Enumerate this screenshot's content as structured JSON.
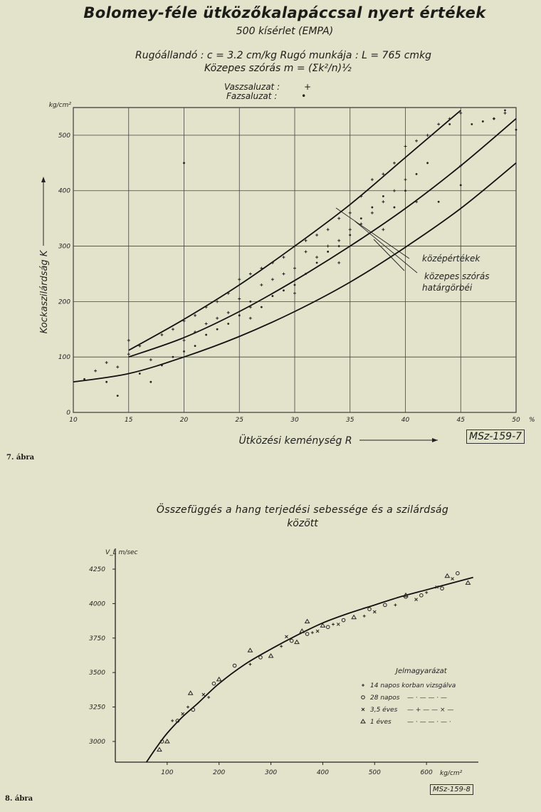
{
  "figure1": {
    "title": "Bolomey-féle ütközőkalapáccsal nyert értékek",
    "subtitle": "500 kísérlet (EMPA)",
    "params_line": "Rugóállandó : c = 3.2 cm/kg   Rugó munkája : L = 765 cmkg",
    "formula_line": "Közepes szórás   m = (Σk²/n)½",
    "legend": [
      {
        "label": "Vaszsaluzat :",
        "symbol": "+"
      },
      {
        "label": "Fazsaluzat :",
        "symbol": "•"
      }
    ],
    "caption": "7. ábra",
    "code_label": "MSz-159-7",
    "annotations": [
      "középértékek",
      "közepes szórás",
      "határgörbéi"
    ],
    "chart_data": {
      "type": "scatter",
      "xlabel": "Ütközési keménység  R",
      "ylabel": "Kockaszilárdság  K",
      "x_unit": "%",
      "y_unit": "kg/cm²",
      "xlim": [
        10,
        50
      ],
      "ylim": [
        0,
        550
      ],
      "x_ticks": [
        "10",
        "15",
        "20",
        "25",
        "30",
        "35",
        "40",
        "45",
        "50"
      ],
      "y_ticks": [
        "0",
        "100",
        "200",
        "300",
        "400",
        "500"
      ],
      "grid": true,
      "curves": [
        {
          "name": "középértékek",
          "points": [
            [
              15,
              100
            ],
            [
              20,
              135
            ],
            [
              25,
              182
            ],
            [
              30,
              238
            ],
            [
              35,
              300
            ],
            [
              40,
              368
            ],
            [
              45,
              445
            ],
            [
              50,
              530
            ]
          ]
        },
        {
          "name": "felső határgörbe",
          "points": [
            [
              15,
              112
            ],
            [
              20,
              168
            ],
            [
              25,
              230
            ],
            [
              30,
              300
            ],
            [
              35,
              375
            ],
            [
              40,
              460
            ],
            [
              45,
              545
            ]
          ]
        },
        {
          "name": "alsó határgörbe",
          "points": [
            [
              10,
              55
            ],
            [
              15,
              70
            ],
            [
              20,
              100
            ],
            [
              25,
              137
            ],
            [
              30,
              182
            ],
            [
              35,
              235
            ],
            [
              40,
              298
            ],
            [
              45,
              368
            ],
            [
              50,
              450
            ]
          ]
        }
      ],
      "series": [
        {
          "name": "Vaszsaluzat",
          "marker": "+",
          "points": [
            [
              12,
              75
            ],
            [
              13,
              90
            ],
            [
              14,
              82
            ],
            [
              15,
              130
            ],
            [
              15,
              105
            ],
            [
              16,
              120
            ],
            [
              17,
              95
            ],
            [
              18,
              140
            ],
            [
              19,
              150
            ],
            [
              20,
              165
            ],
            [
              20,
              130
            ],
            [
              21,
              175
            ],
            [
              21,
              145
            ],
            [
              22,
              190
            ],
            [
              22,
              160
            ],
            [
              23,
              200
            ],
            [
              23,
              170
            ],
            [
              24,
              215
            ],
            [
              24,
              180
            ],
            [
              25,
              205
            ],
            [
              25,
              240
            ],
            [
              26,
              190
            ],
            [
              26,
              250
            ],
            [
              27,
              230
            ],
            [
              27,
              260
            ],
            [
              28,
              270
            ],
            [
              28,
              240
            ],
            [
              29,
              280
            ],
            [
              29,
              250
            ],
            [
              30,
              300
            ],
            [
              30,
              260
            ],
            [
              31,
              290
            ],
            [
              31,
              310
            ],
            [
              32,
              320
            ],
            [
              32,
              280
            ],
            [
              33,
              330
            ],
            [
              33,
              300
            ],
            [
              34,
              350
            ],
            [
              34,
              310
            ],
            [
              35,
              360
            ],
            [
              35,
              330
            ],
            [
              36,
              390
            ],
            [
              36,
              340
            ],
            [
              37,
              420
            ],
            [
              37,
              360
            ],
            [
              38,
              430
            ],
            [
              38,
              380
            ],
            [
              39,
              450
            ],
            [
              39,
              400
            ],
            [
              40,
              480
            ],
            [
              40,
              420
            ],
            [
              41,
              490
            ],
            [
              42,
              500
            ],
            [
              43,
              520
            ],
            [
              44,
              530
            ],
            [
              45,
              540
            ],
            [
              48,
              530
            ],
            [
              49,
              540
            ],
            [
              26,
              170
            ],
            [
              30,
              215
            ],
            [
              34,
              270
            ],
            [
              38,
              330
            ],
            [
              41,
              380
            ],
            [
              45,
              445
            ]
          ]
        },
        {
          "name": "Fazsaluzat",
          "marker": "•",
          "points": [
            [
              11,
              60
            ],
            [
              13,
              55
            ],
            [
              14,
              30
            ],
            [
              16,
              70
            ],
            [
              17,
              55
            ],
            [
              18,
              85
            ],
            [
              19,
              100
            ],
            [
              20,
              110
            ],
            [
              21,
              120
            ],
            [
              22,
              140
            ],
            [
              23,
              150
            ],
            [
              24,
              160
            ],
            [
              25,
              175
            ],
            [
              26,
              200
            ],
            [
              27,
              190
            ],
            [
              28,
              210
            ],
            [
              29,
              220
            ],
            [
              30,
              230
            ],
            [
              31,
              250
            ],
            [
              32,
              270
            ],
            [
              33,
              290
            ],
            [
              34,
              300
            ],
            [
              35,
              320
            ],
            [
              36,
              350
            ],
            [
              37,
              370
            ],
            [
              38,
              390
            ],
            [
              39,
              370
            ],
            [
              40,
              400
            ],
            [
              41,
              430
            ],
            [
              42,
              450
            ],
            [
              44,
              520
            ],
            [
              46,
              520
            ],
            [
              47,
              525
            ],
            [
              48,
              530
            ],
            [
              49,
              545
            ],
            [
              50,
              510
            ],
            [
              20,
              450
            ],
            [
              43,
              380
            ],
            [
              45,
              410
            ]
          ]
        }
      ]
    }
  },
  "figure2": {
    "title_line1": "Összefüggés a hang terjedési sebessége és a szilárdság",
    "title_line2": "között",
    "y_unit": "V_L m/sec",
    "x_unit": "kg/cm²",
    "caption": "8. ábra",
    "code_label": "MSz-159-8",
    "legend_title": "Jelmagyarázat",
    "legend": [
      {
        "symbol": "+",
        "label": "14 napos korban vizsgálva"
      },
      {
        "symbol": "o",
        "label": "28 napos"
      },
      {
        "symbol": "×",
        "label": "3,5 éves"
      },
      {
        "symbol": "△",
        "label": "1 éves"
      }
    ],
    "chart_data": {
      "type": "scatter",
      "xlabel": "",
      "ylabel": "",
      "xlim": [
        0,
        700
      ],
      "ylim": [
        2850,
        4400
      ],
      "x_ticks": [
        "100",
        "200",
        "300",
        "400",
        "500",
        "600"
      ],
      "y_ticks": [
        "3000",
        "3250",
        "3500",
        "3750",
        "4000",
        "4250"
      ],
      "grid": false,
      "fit_curve": [
        [
          60,
          2850
        ],
        [
          80,
          2960
        ],
        [
          100,
          3060
        ],
        [
          130,
          3180
        ],
        [
          160,
          3280
        ],
        [
          200,
          3420
        ],
        [
          250,
          3560
        ],
        [
          300,
          3670
        ],
        [
          350,
          3770
        ],
        [
          400,
          3860
        ],
        [
          450,
          3930
        ],
        [
          500,
          3990
        ],
        [
          550,
          4050
        ],
        [
          600,
          4100
        ],
        [
          650,
          4150
        ],
        [
          690,
          4190
        ]
      ],
      "series": [
        {
          "name": "14 napos korban vizsgálva",
          "marker": "+",
          "points": [
            [
              110,
              3150
            ],
            [
              140,
              3250
            ],
            [
              180,
              3320
            ],
            [
              260,
              3560
            ],
            [
              320,
              3690
            ],
            [
              380,
              3790
            ],
            [
              420,
              3850
            ],
            [
              480,
              3910
            ],
            [
              540,
              3990
            ],
            [
              600,
              4080
            ]
          ]
        },
        {
          "name": "28 napos",
          "marker": "o",
          "points": [
            [
              90,
              3000
            ],
            [
              120,
              3150
            ],
            [
              150,
              3230
            ],
            [
              190,
              3420
            ],
            [
              230,
              3550
            ],
            [
              280,
              3610
            ],
            [
              340,
              3730
            ],
            [
              370,
              3780
            ],
            [
              410,
              3830
            ],
            [
              440,
              3880
            ],
            [
              490,
              3960
            ],
            [
              520,
              3990
            ],
            [
              560,
              4050
            ],
            [
              590,
              4060
            ],
            [
              630,
              4110
            ],
            [
              660,
              4220
            ]
          ]
        },
        {
          "name": "3,5 éves",
          "marker": "×",
          "points": [
            [
              130,
              3200
            ],
            [
              170,
              3340
            ],
            [
              330,
              3760
            ],
            [
              390,
              3800
            ],
            [
              430,
              3850
            ],
            [
              500,
              3940
            ],
            [
              580,
              4030
            ],
            [
              620,
              4120
            ],
            [
              650,
              4180
            ]
          ]
        },
        {
          "name": "1 éves",
          "marker": "△",
          "points": [
            [
              85,
              2940
            ],
            [
              100,
              3000
            ],
            [
              145,
              3350
            ],
            [
              200,
              3450
            ],
            [
              260,
              3660
            ],
            [
              300,
              3620
            ],
            [
              350,
              3720
            ],
            [
              360,
              3800
            ],
            [
              370,
              3870
            ],
            [
              400,
              3840
            ],
            [
              460,
              3900
            ],
            [
              560,
              4060
            ],
            [
              640,
              4200
            ],
            [
              680,
              4150
            ]
          ]
        }
      ]
    }
  }
}
